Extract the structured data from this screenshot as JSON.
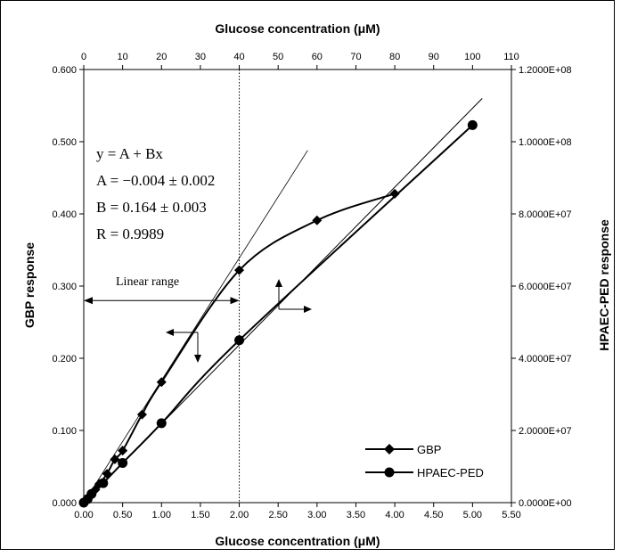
{
  "chart_data": {
    "type": "line",
    "title": "",
    "xlabel_bottom": "Glucose concentration (μM)",
    "xlabel_top": "Glucose concentration (μM)",
    "ylabel_left": "GBP response",
    "ylabel_right": "HPAEC-PED response",
    "x_bottom_ticks": [
      "0.00",
      "0.50",
      "1.00",
      "1.50",
      "2.00",
      "2.50",
      "3.00",
      "3.50",
      "4.00",
      "4.50",
      "5.00",
      "5.50"
    ],
    "x_bottom_lim": [
      0,
      5.5
    ],
    "x_top_ticks": [
      "0",
      "10",
      "20",
      "30",
      "40",
      "50",
      "60",
      "70",
      "80",
      "90",
      "100",
      "110"
    ],
    "x_top_lim": [
      0,
      110
    ],
    "y_left_ticks": [
      "0.000",
      "0.100",
      "0.200",
      "0.300",
      "0.400",
      "0.500",
      "0.600"
    ],
    "y_left_lim": [
      0,
      0.6
    ],
    "y_right_ticks": [
      "0.0000E+00",
      "2.0000E+07",
      "4.0000E+07",
      "6.0000E+07",
      "8.0000E+07",
      "1.0000E+08",
      "1.2000E+08"
    ],
    "y_right_lim": [
      0,
      120000000
    ],
    "grid": false,
    "legend_position": "bottom-right",
    "series": [
      {
        "name": "GBP",
        "marker": "diamond",
        "axis": "bottom-left",
        "x": [
          0.0,
          0.05,
          0.1,
          0.15,
          0.2,
          0.3,
          0.4,
          0.5,
          0.75,
          1.0,
          2.0,
          3.0,
          4.0
        ],
        "y": [
          0.0,
          0.005,
          0.012,
          0.018,
          0.026,
          0.04,
          0.06,
          0.072,
          0.122,
          0.167,
          0.322,
          0.391,
          0.428
        ]
      },
      {
        "name": "HPAEC-PED",
        "marker": "circle",
        "axis": "top-right",
        "x": [
          0,
          1,
          2,
          5,
          10,
          20,
          40,
          100
        ],
        "y": [
          0,
          1000000,
          2400000,
          5400000,
          11000000,
          22000000,
          45000000,
          104600000
        ]
      }
    ],
    "fit_lines": [
      {
        "axis": "bottom-left",
        "x": [
          0,
          2.88
        ],
        "y": [
          0,
          0.488
        ]
      },
      {
        "axis": "top-right",
        "x": [
          0,
          102.5
        ],
        "y": [
          0,
          112000000
        ]
      }
    ],
    "annotations": {
      "equation": "y = A + Bx",
      "param_a": "A = −0.004 ± 0.002",
      "param_b": "B = 0.164 ± 0.003",
      "param_r": "R = 0.9989",
      "linear_range": "Linear range",
      "linear_range_x": [
        0,
        2.0
      ],
      "vertical_marker_x": 2.0
    }
  }
}
